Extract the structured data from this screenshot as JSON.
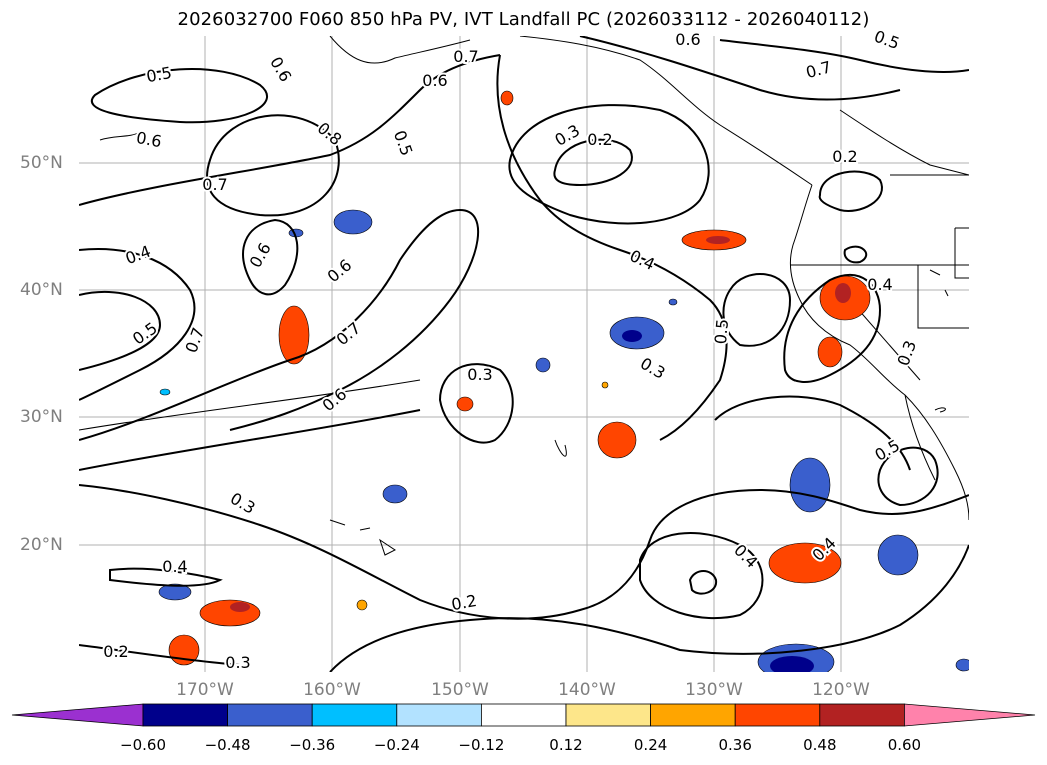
{
  "title": "2026032700 F060 850 hPa PV, IVT Landfall PC (2026033112 - 2026040112)",
  "latitude_labels": [
    "50°N",
    "40°N",
    "30°N",
    "20°N"
  ],
  "longitude_labels": [
    "170°W",
    "160°W",
    "150°W",
    "140°W",
    "130°W",
    "120°W"
  ],
  "contour_labels": [
    "0.5",
    "0.6",
    "0.6",
    "0.8",
    "0.5",
    "0.7",
    "0.6",
    "0.7",
    "0.6",
    "0.5",
    "0.7",
    "0.3",
    "0.2",
    "0.4",
    "0.6",
    "0.7",
    "0.6",
    "0.4",
    "0.5",
    "0.7",
    "0.6",
    "0.5",
    "0.3",
    "0.4",
    "0.3",
    "0.3",
    "0.5",
    "0.3",
    "0.4",
    "0.2",
    "0.2",
    "0.3",
    "0.4",
    "0.4",
    "0.2"
  ],
  "colorbar": {
    "ticks": [
      "−0.60",
      "−0.48",
      "−0.36",
      "−0.24",
      "−0.12",
      "0.12",
      "0.24",
      "0.36",
      "0.48",
      "0.60"
    ],
    "colors": [
      "#9b30d0",
      "#00008b",
      "#3a5fcd",
      "#00bfff",
      "#b2e2ff",
      "#ffffff",
      "#fde68a",
      "#ffa500",
      "#ff4500",
      "#b22222",
      "#ff82ab"
    ]
  }
}
